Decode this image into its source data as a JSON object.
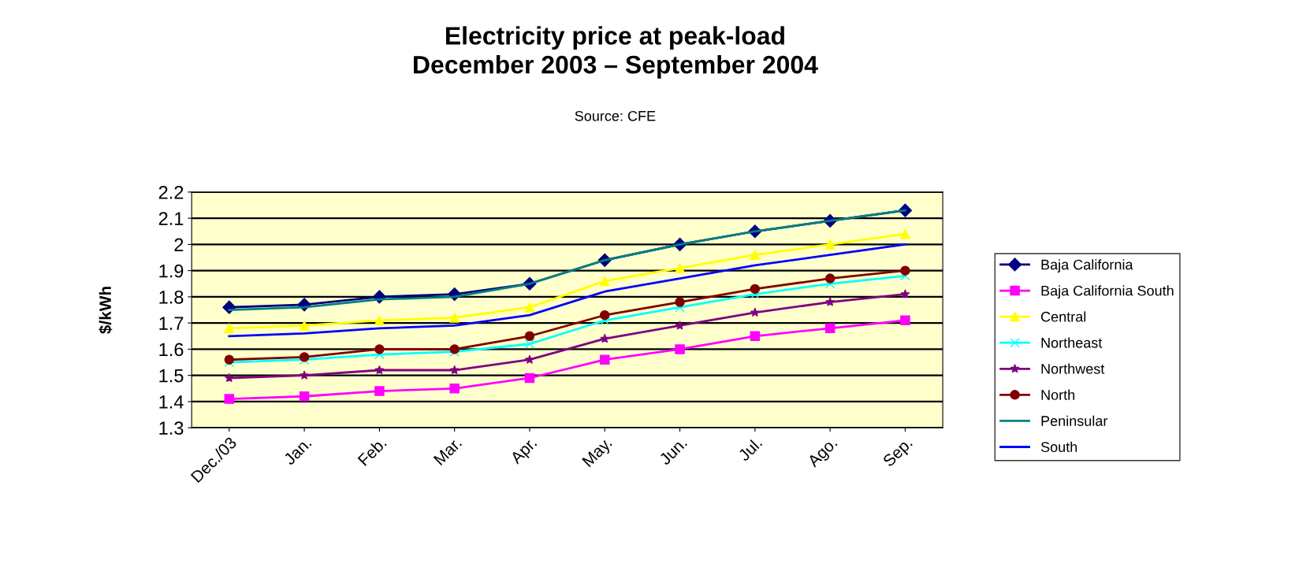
{
  "chart_data": {
    "type": "line",
    "title": "Electricity price at peak-load\nDecember 2003 – September 2004",
    "annotations": [
      "Source: CFE"
    ],
    "ylabel": "$/kWh",
    "categories": [
      "Dec./03",
      "Jan.",
      "Feb.",
      "Mar.",
      "Apr.",
      "May.",
      "Jun.",
      "Jul.",
      "Ago.",
      "Sep."
    ],
    "ylim": [
      1.3,
      2.2
    ],
    "yticks": [
      1.3,
      1.4,
      1.5,
      1.6,
      1.7,
      1.8,
      1.9,
      2,
      2.1,
      2.2
    ],
    "grid": "y",
    "legend": "right",
    "series": [
      {
        "name": "Baja California",
        "color": "#000080",
        "marker": "diamond",
        "values": [
          1.76,
          1.77,
          1.8,
          1.81,
          1.85,
          1.94,
          2.0,
          2.05,
          2.09,
          2.13
        ]
      },
      {
        "name": "Baja California South",
        "color": "#ff00ff",
        "marker": "square",
        "values": [
          1.41,
          1.42,
          1.44,
          1.45,
          1.49,
          1.56,
          1.6,
          1.65,
          1.68,
          1.71
        ]
      },
      {
        "name": "Central",
        "color": "#ffff00",
        "marker": "triangle",
        "values": [
          1.68,
          1.69,
          1.71,
          1.72,
          1.76,
          1.86,
          1.91,
          1.96,
          2.0,
          2.04
        ]
      },
      {
        "name": "Northeast",
        "color": "#00ffff",
        "marker": "cross",
        "values": [
          1.55,
          1.56,
          1.58,
          1.59,
          1.62,
          1.71,
          1.76,
          1.81,
          1.85,
          1.88
        ]
      },
      {
        "name": "Northwest",
        "color": "#800080",
        "marker": "star",
        "values": [
          1.49,
          1.5,
          1.52,
          1.52,
          1.56,
          1.64,
          1.69,
          1.74,
          1.78,
          1.81
        ]
      },
      {
        "name": "North",
        "color": "#800000",
        "marker": "circle",
        "values": [
          1.56,
          1.57,
          1.6,
          1.6,
          1.65,
          1.73,
          1.78,
          1.83,
          1.87,
          1.9
        ]
      },
      {
        "name": "Peninsular",
        "color": "#008080",
        "marker": "none",
        "values": [
          1.75,
          1.76,
          1.79,
          1.8,
          1.85,
          1.94,
          2.0,
          2.05,
          2.09,
          2.13
        ]
      },
      {
        "name": "South",
        "color": "#0000ff",
        "marker": "none",
        "values": [
          1.65,
          1.66,
          1.68,
          1.69,
          1.73,
          1.82,
          1.87,
          1.92,
          1.96,
          2.0
        ]
      }
    ]
  }
}
